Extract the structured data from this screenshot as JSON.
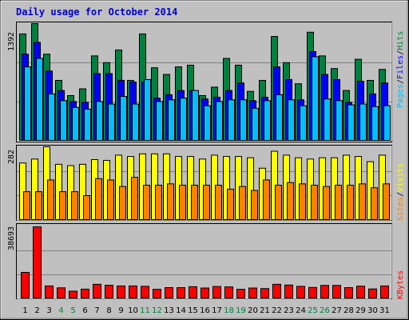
{
  "title": "Daily usage for October 2014",
  "colors": {
    "hits": "#008040",
    "files": "#0000FF",
    "pages": "#00C0FF",
    "visits": "#FFFF00",
    "sites": "#FF8000",
    "kbytes": "#FF0000",
    "weekend_day": "#008040",
    "weekday": "#000000",
    "background": "#C0C0C0"
  },
  "chart_data": [
    {
      "type": "bar",
      "panel": "hits-files-pages",
      "ymax_label": "1392",
      "legend_parts": [
        "Pages",
        "/",
        "Files",
        "/",
        "Hits"
      ],
      "categories": [
        "1",
        "2",
        "3",
        "4",
        "5",
        "6",
        "7",
        "8",
        "9",
        "10",
        "11",
        "12",
        "13",
        "14",
        "15",
        "16",
        "17",
        "18",
        "19",
        "20",
        "21",
        "22",
        "23",
        "24",
        "25",
        "26",
        "27",
        "28",
        "29",
        "30",
        "31"
      ],
      "series": [
        {
          "name": "Hits",
          "values": [
            1270,
            1392,
            1030,
            720,
            540,
            620,
            1010,
            930,
            1080,
            720,
            1270,
            870,
            790,
            880,
            900,
            540,
            640,
            980,
            900,
            590,
            720,
            1240,
            930,
            680,
            1290,
            1010,
            860,
            600,
            970,
            720,
            850
          ]
        },
        {
          "name": "Files",
          "values": [
            1030,
            1170,
            830,
            600,
            470,
            460,
            800,
            800,
            720,
            700,
            700,
            510,
            550,
            600,
            600,
            500,
            520,
            600,
            690,
            480,
            520,
            880,
            730,
            490,
            1060,
            790,
            730,
            460,
            710,
            560,
            690
          ]
        },
        {
          "name": "Pages",
          "values": [
            880,
            980,
            560,
            480,
            400,
            380,
            470,
            440,
            530,
            440,
            730,
            470,
            490,
            510,
            600,
            420,
            470,
            490,
            490,
            390,
            480,
            550,
            490,
            420,
            1000,
            500,
            480,
            430,
            440,
            410,
            420
          ]
        }
      ]
    },
    {
      "type": "bar",
      "panel": "visits-sites",
      "ymax_label": "282",
      "legend_parts": [
        "Sites",
        "/",
        "Visits"
      ],
      "categories": [
        "1",
        "2",
        "3",
        "4",
        "5",
        "6",
        "7",
        "8",
        "9",
        "10",
        "11",
        "12",
        "13",
        "14",
        "15",
        "16",
        "17",
        "18",
        "19",
        "20",
        "21",
        "22",
        "23",
        "24",
        "25",
        "26",
        "27",
        "28",
        "29",
        "30",
        "31"
      ],
      "series": [
        {
          "name": "Visits",
          "values": [
            220,
            235,
            282,
            215,
            210,
            215,
            233,
            230,
            250,
            245,
            255,
            255,
            255,
            245,
            245,
            235,
            250,
            245,
            245,
            240,
            200,
            265,
            250,
            240,
            235,
            240,
            240,
            250,
            245,
            225,
            250
          ]
        },
        {
          "name": "Sites",
          "values": [
            110,
            110,
            155,
            110,
            110,
            95,
            160,
            155,
            130,
            165,
            135,
            135,
            140,
            135,
            135,
            135,
            135,
            120,
            130,
            115,
            155,
            135,
            145,
            140,
            135,
            130,
            135,
            135,
            140,
            125,
            140
          ]
        }
      ]
    },
    {
      "type": "bar",
      "panel": "kbytes",
      "ymax_label": "38693",
      "legend_parts": [
        "KBytes"
      ],
      "categories": [
        "1",
        "2",
        "3",
        "4",
        "5",
        "6",
        "7",
        "8",
        "9",
        "10",
        "11",
        "12",
        "13",
        "14",
        "15",
        "16",
        "17",
        "18",
        "19",
        "20",
        "21",
        "22",
        "23",
        "24",
        "25",
        "26",
        "27",
        "28",
        "29",
        "30",
        "31"
      ],
      "series": [
        {
          "name": "KBytes",
          "values": [
            14200,
            38693,
            6900,
            5900,
            4100,
            5200,
            7800,
            7300,
            6900,
            6900,
            6700,
            5100,
            6000,
            6000,
            6500,
            5800,
            6600,
            6400,
            5100,
            5800,
            5500,
            7800,
            7400,
            6700,
            6100,
            7200,
            7200,
            6000,
            6800,
            5300,
            6900
          ]
        }
      ]
    }
  ],
  "x_axis": {
    "labels": [
      "1",
      "2",
      "3",
      "4",
      "5",
      "6",
      "7",
      "8",
      "9",
      "10",
      "11",
      "12",
      "13",
      "14",
      "15",
      "16",
      "17",
      "18",
      "19",
      "20",
      "21",
      "22",
      "23",
      "24",
      "25",
      "26",
      "27",
      "28",
      "29",
      "30",
      "31"
    ],
    "weekend_days": [
      "4",
      "5",
      "11",
      "12",
      "18",
      "19",
      "25",
      "26"
    ]
  }
}
